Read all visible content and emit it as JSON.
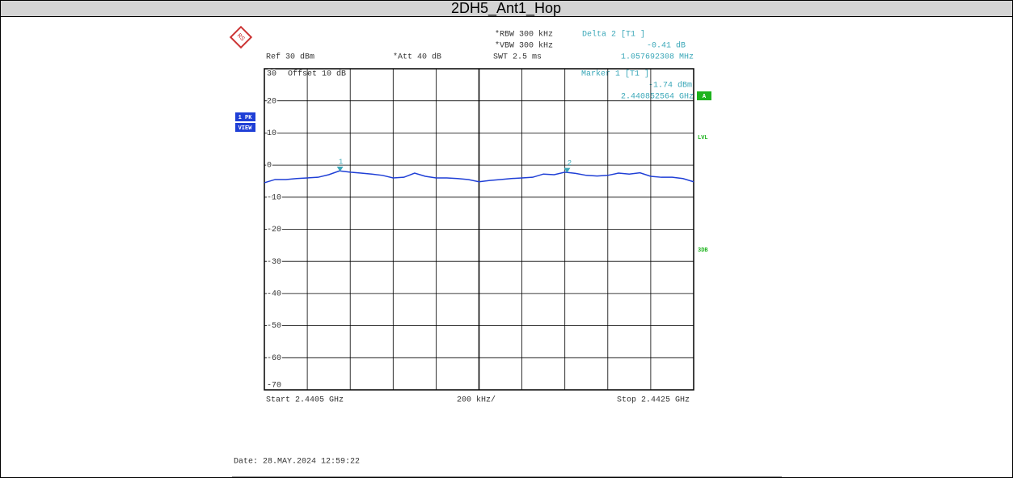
{
  "chart_data": {
    "type": "line",
    "title": "2DH5_Ant1_Hop",
    "x": [
      2.4405,
      2.44055,
      2.4406,
      2.44065,
      2.4407,
      2.44075,
      2.4408,
      2.44085,
      2.4409,
      2.44095,
      2.441,
      2.44105,
      2.4411,
      2.44115,
      2.4412,
      2.44125,
      2.4413,
      2.44135,
      2.4414,
      2.44145,
      2.4415,
      2.44155,
      2.4416,
      2.44165,
      2.4417,
      2.44175,
      2.4418,
      2.44185,
      2.4419,
      2.44195,
      2.442,
      2.44205,
      2.4421,
      2.44215,
      2.4422,
      2.44225,
      2.4423,
      2.44235,
      2.4424,
      2.44245,
      2.4425
    ],
    "series": [
      {
        "name": "1 PK",
        "color": "#1f3fd6",
        "values": [
          -5.5,
          -4.5,
          -4.5,
          -4.2,
          -4,
          -3.8,
          -3,
          -1.8,
          -2.2,
          -2.5,
          -2.8,
          -3.2,
          -4,
          -3.8,
          -2.5,
          -3.5,
          -4,
          -4,
          -4.2,
          -4.5,
          -5.2,
          -4.8,
          -4.5,
          -4.2,
          -4,
          -3.8,
          -2.8,
          -3,
          -2.2,
          -2.6,
          -3.2,
          -3.4,
          -3.2,
          -2.5,
          -2.8,
          -2.4,
          -3.5,
          -3.8,
          -3.8,
          -4.2,
          -5.2
        ]
      }
    ],
    "xlim": [
      2.4405,
      2.4425
    ],
    "ylim": [
      -70,
      30
    ],
    "yticks": [
      30,
      20,
      10,
      0,
      -10,
      -20,
      -30,
      -40,
      -50,
      -60,
      -70
    ],
    "markers": [
      {
        "label": "1",
        "x": 2.440852564,
        "y": -1.74
      },
      {
        "label": "2",
        "x": 2.441910256,
        "y": -2.15
      }
    ],
    "grid": true,
    "settings": {
      "rbw": "*RBW 300 kHz",
      "vbw": "*VBW 300 kHz",
      "swt": "SWT 2.5 ms",
      "ref": "Ref  30 dBm",
      "att": "*Att  40 dB",
      "offset": "Offset  10 dB"
    },
    "delta": {
      "title": "Delta 2 [T1 ]",
      "level": "-0.41 dB",
      "freq": "1.057692308 MHz"
    },
    "marker_readout": {
      "title": "Marker 1 [T1 ]",
      "level": "-1.74 dBm",
      "freq": "2.440852564 GHz"
    },
    "trace_label": [
      "1 PK",
      "VIEW"
    ],
    "side_labels": {
      "a": "A",
      "lvl": "LVL",
      "db3": "3DB"
    },
    "start": "Start 2.4405 GHz",
    "span": "200 kHz/",
    "stop": "Stop 2.4425 GHz",
    "date": "Date: 28.MAY.2024  12:59:22"
  }
}
